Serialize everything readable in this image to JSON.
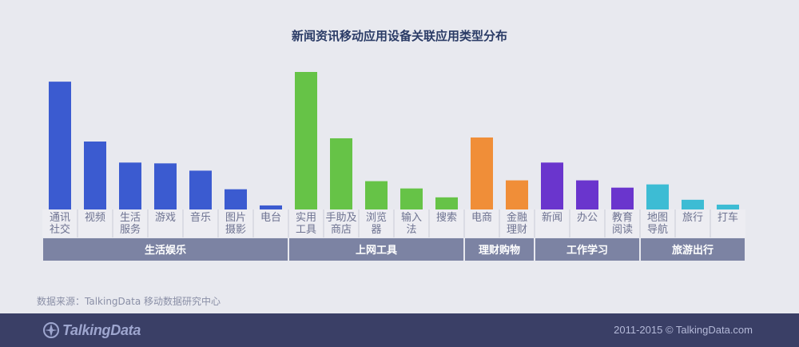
{
  "title": "新闻资讯移动应用设备关联应用类型分布",
  "source": "数据来源：TalkingData 移动数据研究中心",
  "footer": {
    "logo_text": "TalkingData",
    "copyright": "2011-2015 © TalkingData.com",
    "logo_icon": "talkingdata-logo-icon"
  },
  "colors": {
    "生活娱乐": "#3b5bd0",
    "上网工具": "#66c347",
    "理财购物": "#f08e38",
    "工作学习": "#6a35cd",
    "旅游出行": "#3dbcd4",
    "group_band": "#7c83a3"
  },
  "chart_data": {
    "type": "bar",
    "title": "新闻资讯移动应用设备关联应用类型分布",
    "axes_shown": false,
    "grid": false,
    "categories": [
      "通讯社交",
      "视频",
      "生活服务",
      "游戏",
      "音乐",
      "图片摄影",
      "电台",
      "实用工具",
      "手助及商店",
      "浏览器",
      "输入法",
      "搜索",
      "电商",
      "金融理财",
      "新闻",
      "办公",
      "教育阅读",
      "地图导航",
      "旅行",
      "打车"
    ],
    "category_labels": [
      [
        "通讯",
        "社交"
      ],
      [
        "视频"
      ],
      [
        "生活",
        "服务"
      ],
      [
        "游戏"
      ],
      [
        "音乐"
      ],
      [
        "图片",
        "摄影"
      ],
      [
        "电台"
      ],
      [
        "实用",
        "工具"
      ],
      [
        "手助及",
        "商店"
      ],
      [
        "浏览",
        "器"
      ],
      [
        "输入",
        "法"
      ],
      [
        "搜索"
      ],
      [
        "电商"
      ],
      [
        "金融",
        "理财"
      ],
      [
        "新闻"
      ],
      [
        "办公"
      ],
      [
        "教育",
        "阅读"
      ],
      [
        "地图",
        "导航"
      ],
      [
        "旅行"
      ],
      [
        "打车"
      ]
    ],
    "values": [
      158,
      84,
      58,
      57,
      48,
      25,
      5,
      170,
      88,
      35,
      26,
      15,
      89,
      36,
      58,
      36,
      27,
      31,
      12,
      6
    ],
    "groups": [
      {
        "name": "生活娱乐",
        "count": 7
      },
      {
        "name": "上网工具",
        "count": 5
      },
      {
        "name": "理财购物",
        "count": 2
      },
      {
        "name": "工作学习",
        "count": 3
      },
      {
        "name": "旅游出行",
        "count": 3
      }
    ]
  }
}
